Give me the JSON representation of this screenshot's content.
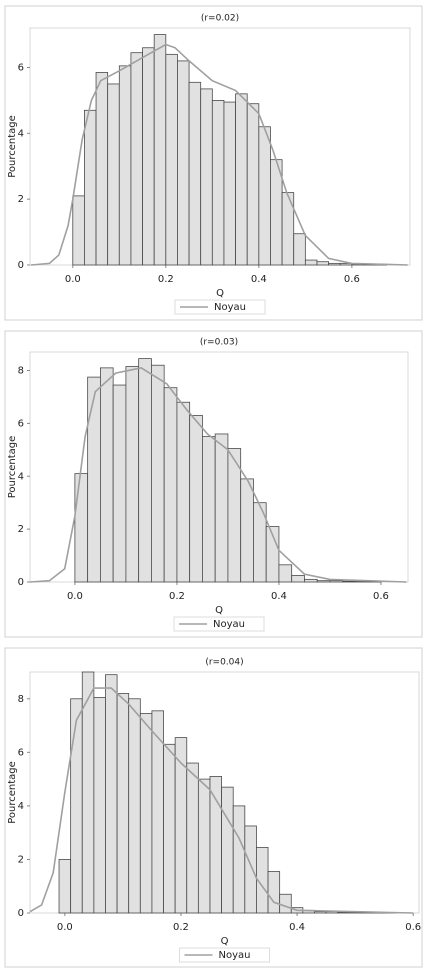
{
  "chart_data": [
    {
      "type": "histogram",
      "title": "(r=0.02)",
      "x_label": "Q",
      "y_label": "Pourcentage",
      "color": "#e1e1e1",
      "edge_color": "#4a4a4a",
      "bins": [
        0,
        0.025,
        0.05,
        0.075,
        0.1,
        0.125,
        0.15,
        0.175,
        0.2,
        0.225,
        0.25,
        0.275,
        0.3,
        0.325,
        0.35,
        0.375,
        0.4,
        0.425,
        0.45,
        0.475,
        0.5,
        0.525,
        0.55,
        0.575,
        0.6,
        0.625,
        0.65,
        0.675
      ],
      "values": [
        2.1,
        4.7,
        5.85,
        5.5,
        6.05,
        6.45,
        6.6,
        7.0,
        6.4,
        6.2,
        5.55,
        5.35,
        5.0,
        4.95,
        5.2,
        4.9,
        4.2,
        3.2,
        2.2,
        0.95,
        0.15,
        0.1,
        0.05,
        0.05,
        0.03,
        0.02,
        0.02
      ],
      "density": {
        "name": "Noyau",
        "color": "#a0a0a0",
        "x": [
          -0.09,
          -0.05,
          -0.03,
          -0.01,
          0.0,
          0.02,
          0.04,
          0.06,
          0.1,
          0.15,
          0.2,
          0.22,
          0.25,
          0.3,
          0.35,
          0.4,
          0.43,
          0.46,
          0.5,
          0.55,
          0.6,
          0.72
        ],
        "y": [
          0,
          0.05,
          0.3,
          1.2,
          2.0,
          3.8,
          5.0,
          5.6,
          5.9,
          6.3,
          6.7,
          6.6,
          6.2,
          5.6,
          5.3,
          4.6,
          3.5,
          2.2,
          0.9,
          0.2,
          0.05,
          0
        ]
      },
      "xlim": [
        -0.092,
        0.725
      ],
      "ylim": [
        0,
        7.2
      ],
      "xticks": [
        {
          "value": 0,
          "label": "0.0"
        },
        0.2,
        0.4,
        0.6
      ],
      "yticks": [
        0,
        2,
        4,
        6
      ]
    },
    {
      "type": "histogram",
      "title": "(r=0.03)",
      "x_label": "Q",
      "y_label": "Pourcentage",
      "color": "#e1e1e1",
      "edge_color": "#4a4a4a",
      "bins": [
        0,
        0.025,
        0.05,
        0.075,
        0.1,
        0.125,
        0.15,
        0.175,
        0.2,
        0.225,
        0.25,
        0.275,
        0.3,
        0.325,
        0.35,
        0.375,
        0.4,
        0.425,
        0.45,
        0.475,
        0.5,
        0.525,
        0.55,
        0.575,
        0.6
      ],
      "values": [
        4.1,
        7.75,
        8.1,
        7.45,
        8.15,
        8.45,
        8.2,
        7.35,
        6.8,
        6.3,
        5.5,
        5.6,
        5.05,
        3.9,
        3.0,
        2.1,
        0.65,
        0.25,
        0.1,
        0.05,
        0.05,
        0.03,
        0.02,
        0.02
      ],
      "density": {
        "name": "Noyau",
        "color": "#a0a0a0",
        "x": [
          -0.088,
          -0.05,
          -0.02,
          0.0,
          0.02,
          0.04,
          0.08,
          0.13,
          0.18,
          0.22,
          0.26,
          0.3,
          0.34,
          0.37,
          0.4,
          0.45,
          0.5,
          0.65
        ],
        "y": [
          0,
          0.05,
          0.5,
          2.5,
          5.5,
          7.2,
          7.9,
          8.1,
          7.5,
          6.5,
          5.6,
          5.0,
          3.8,
          2.6,
          1.2,
          0.3,
          0.1,
          0
        ]
      },
      "xlim": [
        -0.088,
        0.653
      ],
      "ylim": [
        0,
        8.7
      ],
      "xticks": [
        {
          "value": 0,
          "label": "0.0"
        },
        0.2,
        0.4,
        0.6
      ],
      "yticks": [
        0,
        2,
        4,
        6,
        8
      ]
    },
    {
      "type": "histogram",
      "title": "(r=0.04)",
      "x_label": "Q",
      "y_label": "Pourcentage",
      "color": "#e1e1e1",
      "edge_color": "#4a4a4a",
      "bins": [
        -0.01,
        0.01,
        0.03,
        0.05,
        0.07,
        0.09,
        0.11,
        0.13,
        0.15,
        0.17,
        0.19,
        0.21,
        0.23,
        0.25,
        0.27,
        0.29,
        0.31,
        0.33,
        0.35,
        0.37,
        0.39,
        0.41,
        0.43,
        0.45,
        0.47,
        0.49,
        0.51,
        0.53,
        0.55,
        0.57
      ],
      "values": [
        2.0,
        8.0,
        9.0,
        8.05,
        8.9,
        8.2,
        8.0,
        7.45,
        7.55,
        6.3,
        6.55,
        5.6,
        5.0,
        5.1,
        4.7,
        4.0,
        3.25,
        2.45,
        1.55,
        0.7,
        0.2,
        0.1,
        0.05,
        0.05,
        0.03,
        0.02,
        0.02,
        0.02,
        0.02
      ],
      "density": {
        "name": "Noyau",
        "color": "#a0a0a0",
        "x": [
          -0.06,
          -0.04,
          -0.02,
          0.0,
          0.02,
          0.05,
          0.08,
          0.11,
          0.15,
          0.2,
          0.25,
          0.3,
          0.33,
          0.36,
          0.4,
          0.6
        ],
        "y": [
          0.05,
          0.3,
          1.5,
          4.5,
          7.2,
          8.4,
          8.4,
          7.8,
          6.8,
          5.6,
          4.6,
          2.8,
          1.3,
          0.4,
          0.1,
          0
        ]
      },
      "xlim": [
        -0.06,
        0.61
      ],
      "ylim": [
        0,
        9.0
      ],
      "xticks": [
        {
          "value": 0,
          "label": "0.0"
        },
        0.2,
        0.4,
        0.6
      ],
      "yticks": [
        0,
        2,
        4,
        6,
        8
      ]
    }
  ]
}
